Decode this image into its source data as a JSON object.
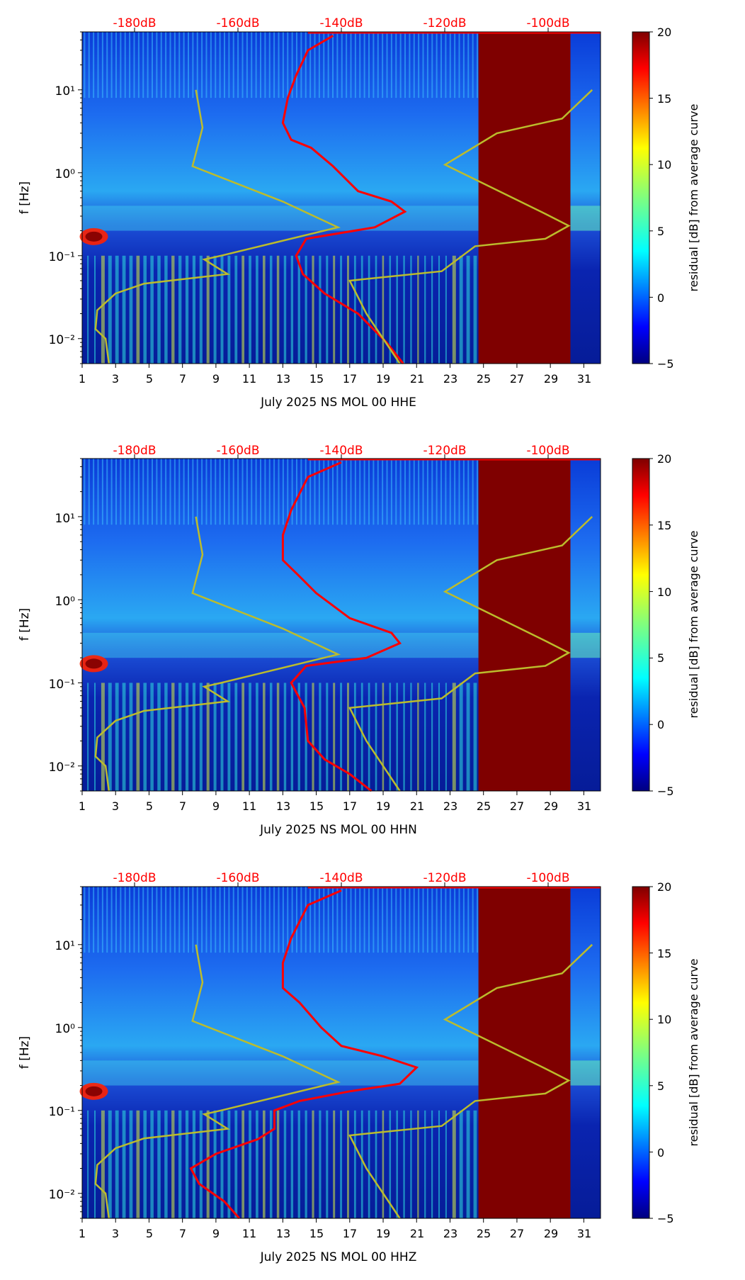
{
  "chart_data": [
    {
      "type": "heatmap",
      "xlabel": "July 2025 NS MOL 00 HHE",
      "ylabel": "f [Hz]",
      "colorbar_label": "residual [dB] from average curve",
      "colorbar_range": [
        -5,
        20
      ],
      "colorbar_ticks": [
        "20",
        "15",
        "10",
        "5",
        "0",
        "−5"
      ],
      "colormap": "jet",
      "x_ticks": [
        "1",
        "3",
        "5",
        "7",
        "9",
        "11",
        "13",
        "15",
        "17",
        "19",
        "21",
        "23",
        "25",
        "27",
        "29",
        "31"
      ],
      "y_ticks": [
        "10¹",
        "10⁰",
        "10⁻¹",
        "10⁻²"
      ],
      "y_scale": "log",
      "ylim": [
        0.005,
        50
      ],
      "xlim": [
        1,
        32
      ],
      "top_axis_labels": [
        "-180dB",
        "-160dB",
        "-140dB",
        "-120dB",
        "-100dB"
      ],
      "top_axis_color": "#ff0000",
      "saturated_range": {
        "x": [
          24.7,
          30.2
        ],
        "value": 20
      },
      "curves": [
        {
          "color": "#ff0000",
          "points": [
            [
              20.2,
              0.005
            ],
            [
              19.2,
              0.009
            ],
            [
              17.5,
              0.02
            ],
            [
              15.5,
              0.035
            ],
            [
              14.2,
              0.06
            ],
            [
              13.8,
              0.1
            ],
            [
              14.4,
              0.16
            ],
            [
              18.5,
              0.22
            ],
            [
              20.3,
              0.34
            ],
            [
              19.5,
              0.45
            ],
            [
              17.5,
              0.6
            ],
            [
              16,
              1.2
            ],
            [
              14.7,
              2
            ],
            [
              13.5,
              2.5
            ],
            [
              13,
              4
            ],
            [
              13.3,
              8
            ],
            [
              13.8,
              15
            ],
            [
              14.5,
              30
            ],
            [
              16,
              45
            ]
          ]
        },
        {
          "color": "#bcbc2c",
          "points": [
            [
              2.6,
              0.005
            ],
            [
              2.4,
              0.01
            ],
            [
              1.8,
              0.013
            ],
            [
              1.9,
              0.022
            ],
            [
              3,
              0.035
            ],
            [
              4.7,
              0.046
            ],
            [
              9.7,
              0.06
            ],
            [
              8.3,
              0.09
            ],
            [
              9.3,
              0.1
            ],
            [
              16.3,
              0.22
            ],
            [
              13,
              0.45
            ],
            [
              7.6,
              1.2
            ],
            [
              8.2,
              3.5
            ],
            [
              7.8,
              10
            ]
          ]
        },
        {
          "color": "#bcbc2c",
          "points": [
            [
              20,
              0.005
            ],
            [
              18,
              0.02
            ],
            [
              17,
              0.05
            ],
            [
              22.5,
              0.065
            ],
            [
              24.5,
              0.13
            ],
            [
              28.7,
              0.16
            ],
            [
              30.1,
              0.23
            ],
            [
              28.7,
              0.32
            ],
            [
              22.7,
              1.25
            ],
            [
              25.8,
              3
            ],
            [
              29.7,
              4.5
            ],
            [
              31.5,
              10
            ]
          ]
        }
      ]
    },
    {
      "type": "heatmap",
      "xlabel": "July 2025 NS MOL 00 HHN",
      "ylabel": "f [Hz]",
      "colorbar_label": "residual [dB] from average curve",
      "colorbar_range": [
        -5,
        20
      ],
      "colorbar_ticks": [
        "20",
        "15",
        "10",
        "5",
        "0",
        "−5"
      ],
      "colormap": "jet",
      "x_ticks": [
        "1",
        "3",
        "5",
        "7",
        "9",
        "11",
        "13",
        "15",
        "17",
        "19",
        "21",
        "23",
        "25",
        "27",
        "29",
        "31"
      ],
      "y_ticks": [
        "10¹",
        "10⁰",
        "10⁻¹",
        "10⁻²"
      ],
      "y_scale": "log",
      "ylim": [
        0.005,
        50
      ],
      "xlim": [
        1,
        32
      ],
      "top_axis_labels": [
        "-180dB",
        "-160dB",
        "-140dB",
        "-120dB",
        "-100dB"
      ],
      "top_axis_color": "#ff0000",
      "saturated_range": {
        "x": [
          24.7,
          30.2
        ],
        "value": 20
      },
      "curves": [
        {
          "color": "#ff0000",
          "points": [
            [
              18.3,
              0.005
            ],
            [
              17,
              0.008
            ],
            [
              15.5,
              0.012
            ],
            [
              14.5,
              0.02
            ],
            [
              14.3,
              0.05
            ],
            [
              13.5,
              0.1
            ],
            [
              14.4,
              0.16
            ],
            [
              18,
              0.2
            ],
            [
              20,
              0.3
            ],
            [
              19.5,
              0.4
            ],
            [
              17,
              0.6
            ],
            [
              15,
              1.2
            ],
            [
              13.9,
              2
            ],
            [
              13,
              3
            ],
            [
              13,
              6
            ],
            [
              13.5,
              12
            ],
            [
              14.5,
              30
            ],
            [
              16.5,
              45
            ]
          ]
        },
        {
          "color": "#bcbc2c",
          "points": [
            [
              2.6,
              0.005
            ],
            [
              2.4,
              0.01
            ],
            [
              1.8,
              0.013
            ],
            [
              1.9,
              0.022
            ],
            [
              3,
              0.035
            ],
            [
              4.7,
              0.046
            ],
            [
              9.7,
              0.06
            ],
            [
              8.3,
              0.09
            ],
            [
              9.3,
              0.1
            ],
            [
              16.3,
              0.22
            ],
            [
              13,
              0.45
            ],
            [
              7.6,
              1.2
            ],
            [
              8.2,
              3.5
            ],
            [
              7.8,
              10
            ]
          ]
        },
        {
          "color": "#bcbc2c",
          "points": [
            [
              20,
              0.005
            ],
            [
              18,
              0.02
            ],
            [
              17,
              0.05
            ],
            [
              22.5,
              0.065
            ],
            [
              24.5,
              0.13
            ],
            [
              28.7,
              0.16
            ],
            [
              30.1,
              0.23
            ],
            [
              28.7,
              0.32
            ],
            [
              22.7,
              1.25
            ],
            [
              25.8,
              3
            ],
            [
              29.7,
              4.5
            ],
            [
              31.5,
              10
            ]
          ]
        }
      ]
    },
    {
      "type": "heatmap",
      "xlabel": "July 2025 NS MOL 00 HHZ",
      "ylabel": "f [Hz]",
      "colorbar_label": "residual [dB] from average curve",
      "colorbar_range": [
        -5,
        20
      ],
      "colorbar_ticks": [
        "20",
        "15",
        "10",
        "5",
        "0",
        "−5"
      ],
      "colormap": "jet",
      "x_ticks": [
        "1",
        "3",
        "5",
        "7",
        "9",
        "11",
        "13",
        "15",
        "17",
        "19",
        "21",
        "23",
        "25",
        "27",
        "29",
        "31"
      ],
      "y_ticks": [
        "10¹",
        "10⁰",
        "10⁻¹",
        "10⁻²"
      ],
      "y_scale": "log",
      "ylim": [
        0.005,
        50
      ],
      "xlim": [
        1,
        32
      ],
      "top_axis_labels": [
        "-180dB",
        "-160dB",
        "-140dB",
        "-120dB",
        "-100dB"
      ],
      "top_axis_color": "#ff0000",
      "saturated_range": {
        "x": [
          24.7,
          30.2
        ],
        "value": 20
      },
      "curves": [
        {
          "color": "#ff0000",
          "points": [
            [
              10.4,
              0.005
            ],
            [
              9.5,
              0.008
            ],
            [
              8,
              0.013
            ],
            [
              7.5,
              0.02
            ],
            [
              9,
              0.03
            ],
            [
              11.5,
              0.045
            ],
            [
              12.5,
              0.06
            ],
            [
              12.5,
              0.1
            ],
            [
              14,
              0.13
            ],
            [
              17,
              0.17
            ],
            [
              20,
              0.21
            ],
            [
              21,
              0.33
            ],
            [
              19,
              0.45
            ],
            [
              16.5,
              0.6
            ],
            [
              15.3,
              1
            ],
            [
              14,
              2
            ],
            [
              13,
              3
            ],
            [
              13,
              6
            ],
            [
              13.5,
              12
            ],
            [
              14.5,
              30
            ],
            [
              16.5,
              45
            ]
          ]
        },
        {
          "color": "#bcbc2c",
          "points": [
            [
              2.6,
              0.005
            ],
            [
              2.4,
              0.01
            ],
            [
              1.8,
              0.013
            ],
            [
              1.9,
              0.022
            ],
            [
              3,
              0.035
            ],
            [
              4.7,
              0.046
            ],
            [
              9.7,
              0.06
            ],
            [
              8.3,
              0.09
            ],
            [
              9.3,
              0.1
            ],
            [
              16.3,
              0.22
            ],
            [
              13,
              0.45
            ],
            [
              7.6,
              1.2
            ],
            [
              8.2,
              3.5
            ],
            [
              7.8,
              10
            ]
          ]
        },
        {
          "color": "#bcbc2c",
          "points": [
            [
              20,
              0.005
            ],
            [
              18,
              0.02
            ],
            [
              17,
              0.05
            ],
            [
              22.5,
              0.065
            ],
            [
              24.5,
              0.13
            ],
            [
              28.7,
              0.16
            ],
            [
              30.1,
              0.23
            ],
            [
              28.7,
              0.32
            ],
            [
              22.7,
              1.25
            ],
            [
              25.8,
              3
            ],
            [
              29.7,
              4.5
            ],
            [
              31.5,
              10
            ]
          ]
        }
      ]
    }
  ]
}
